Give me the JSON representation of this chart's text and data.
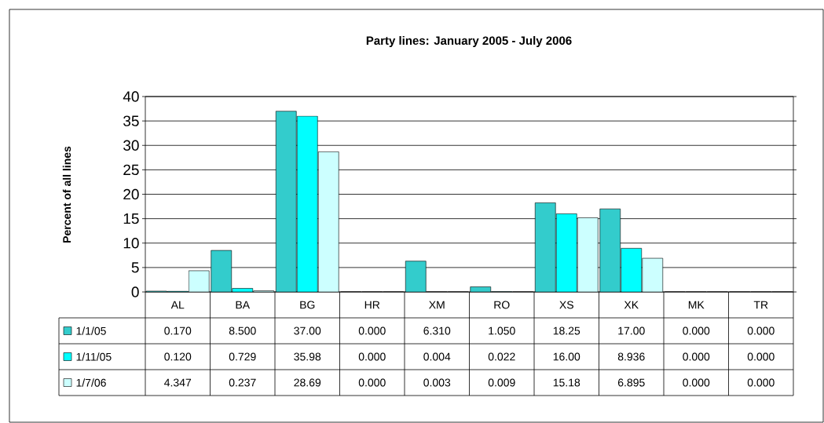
{
  "chart_data": {
    "type": "bar",
    "title": "Party lines:  January 2005 - July 2006",
    "ylabel": "Percent of all lines",
    "categories": [
      "AL",
      "BA",
      "BG",
      "HR",
      "XM",
      "RO",
      "XS",
      "XK",
      "MK",
      "TR"
    ],
    "series": [
      {
        "name": "1/1/05",
        "color": "#33cccc",
        "values": [
          0.17,
          8.5,
          37.0,
          0.0,
          6.31,
          1.05,
          18.25,
          17.0,
          0.0,
          0.0
        ],
        "value_labels": [
          "0.170",
          "8.500",
          "37.00",
          "0.000",
          "6.310",
          "1.050",
          "18.25",
          "17.00",
          "0.000",
          "0.000"
        ]
      },
      {
        "name": "1/11/05",
        "color": "#00ffff",
        "values": [
          0.12,
          0.729,
          35.98,
          0.0,
          0.004,
          0.022,
          16.0,
          8.936,
          0.0,
          0.0
        ],
        "value_labels": [
          "0.120",
          "0.729",
          "35.98",
          "0.000",
          "0.004",
          "0.022",
          "16.00",
          "8.936",
          "0.000",
          "0.000"
        ]
      },
      {
        "name": "1/7/06",
        "color": "#ccffff",
        "values": [
          4.347,
          0.237,
          28.69,
          0.0,
          0.003,
          0.009,
          15.18,
          6.895,
          0.0,
          0.0
        ],
        "value_labels": [
          "4.347",
          "0.237",
          "28.69",
          "0.000",
          "0.003",
          "0.009",
          "15.18",
          "6.895",
          "0.000",
          "0.000"
        ]
      }
    ],
    "ylim": [
      0,
      40
    ],
    "yticks": [
      0,
      5,
      10,
      15,
      20,
      25,
      30,
      35,
      40
    ],
    "grid": "y",
    "legend": "bottom"
  }
}
